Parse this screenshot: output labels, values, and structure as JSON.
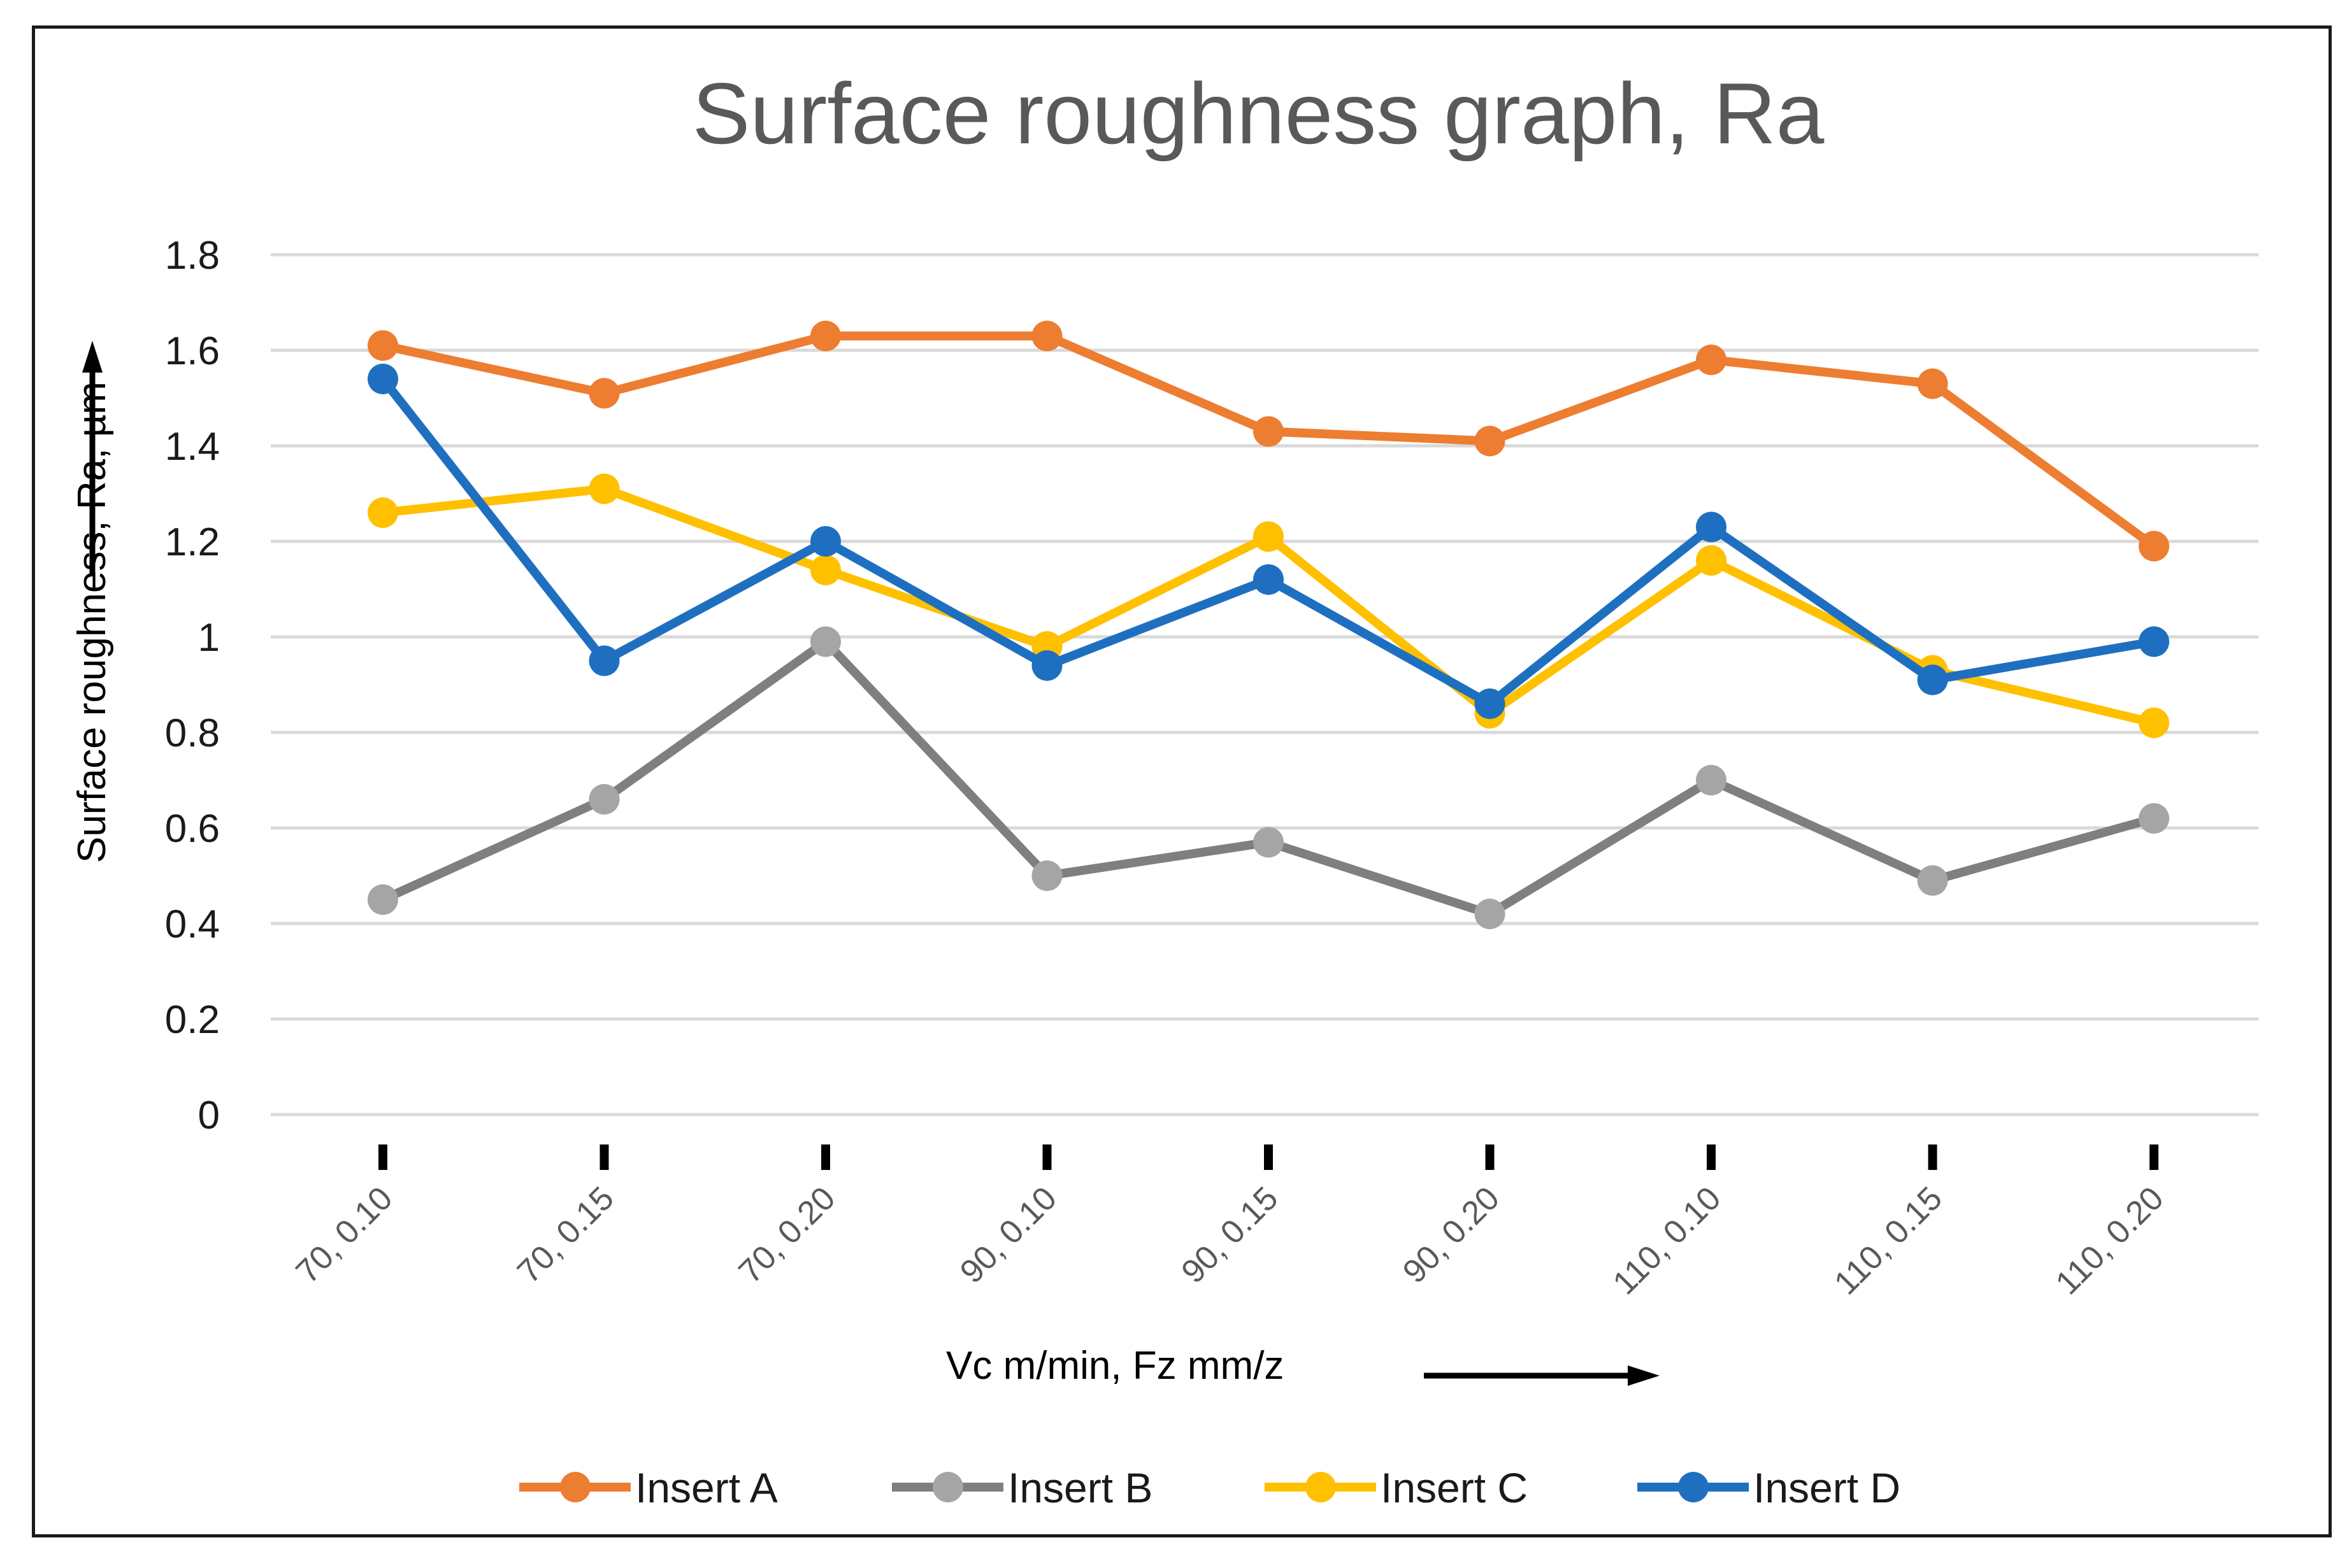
{
  "chart_data": {
    "type": "line",
    "title": "Surface roughness graph, Ra",
    "xlabel": "Vc m/min, Fz mm/z",
    "ylabel": "Surface roughness,  Ra, µm",
    "categories": [
      "70, 0.10",
      "70, 0.15",
      "70, 0.20",
      "90, 0.10",
      "90, 0.15",
      "90, 0.20",
      "110, 0.10",
      "110, 0.15",
      "110, 0.20"
    ],
    "ylim": [
      0,
      1.8
    ],
    "yticks": [
      "0",
      "0.2",
      "0.4",
      "0.6",
      "0.8",
      "1",
      "1.2",
      "1.4",
      "1.6",
      "1.8"
    ],
    "grid": true,
    "legend_position": "bottom",
    "series": [
      {
        "name": "Insert A",
        "color": "#ED7D31",
        "values": [
          1.61,
          1.51,
          1.63,
          1.63,
          1.43,
          1.41,
          1.58,
          1.53,
          1.19
        ]
      },
      {
        "name": "Insert B",
        "color": "#7F7F7F",
        "marker_color": "#A5A5A5",
        "values": [
          0.45,
          0.66,
          0.99,
          0.5,
          0.57,
          0.42,
          0.7,
          0.49,
          0.62
        ]
      },
      {
        "name": "Insert C",
        "color": "#FFC000",
        "values": [
          1.26,
          1.31,
          1.14,
          0.98,
          1.21,
          0.84,
          1.16,
          0.93,
          0.82
        ]
      },
      {
        "name": "Insert D",
        "color": "#1F6FC0",
        "values": [
          1.54,
          0.95,
          1.2,
          0.94,
          1.12,
          0.86,
          1.23,
          0.91,
          0.99
        ]
      }
    ]
  }
}
